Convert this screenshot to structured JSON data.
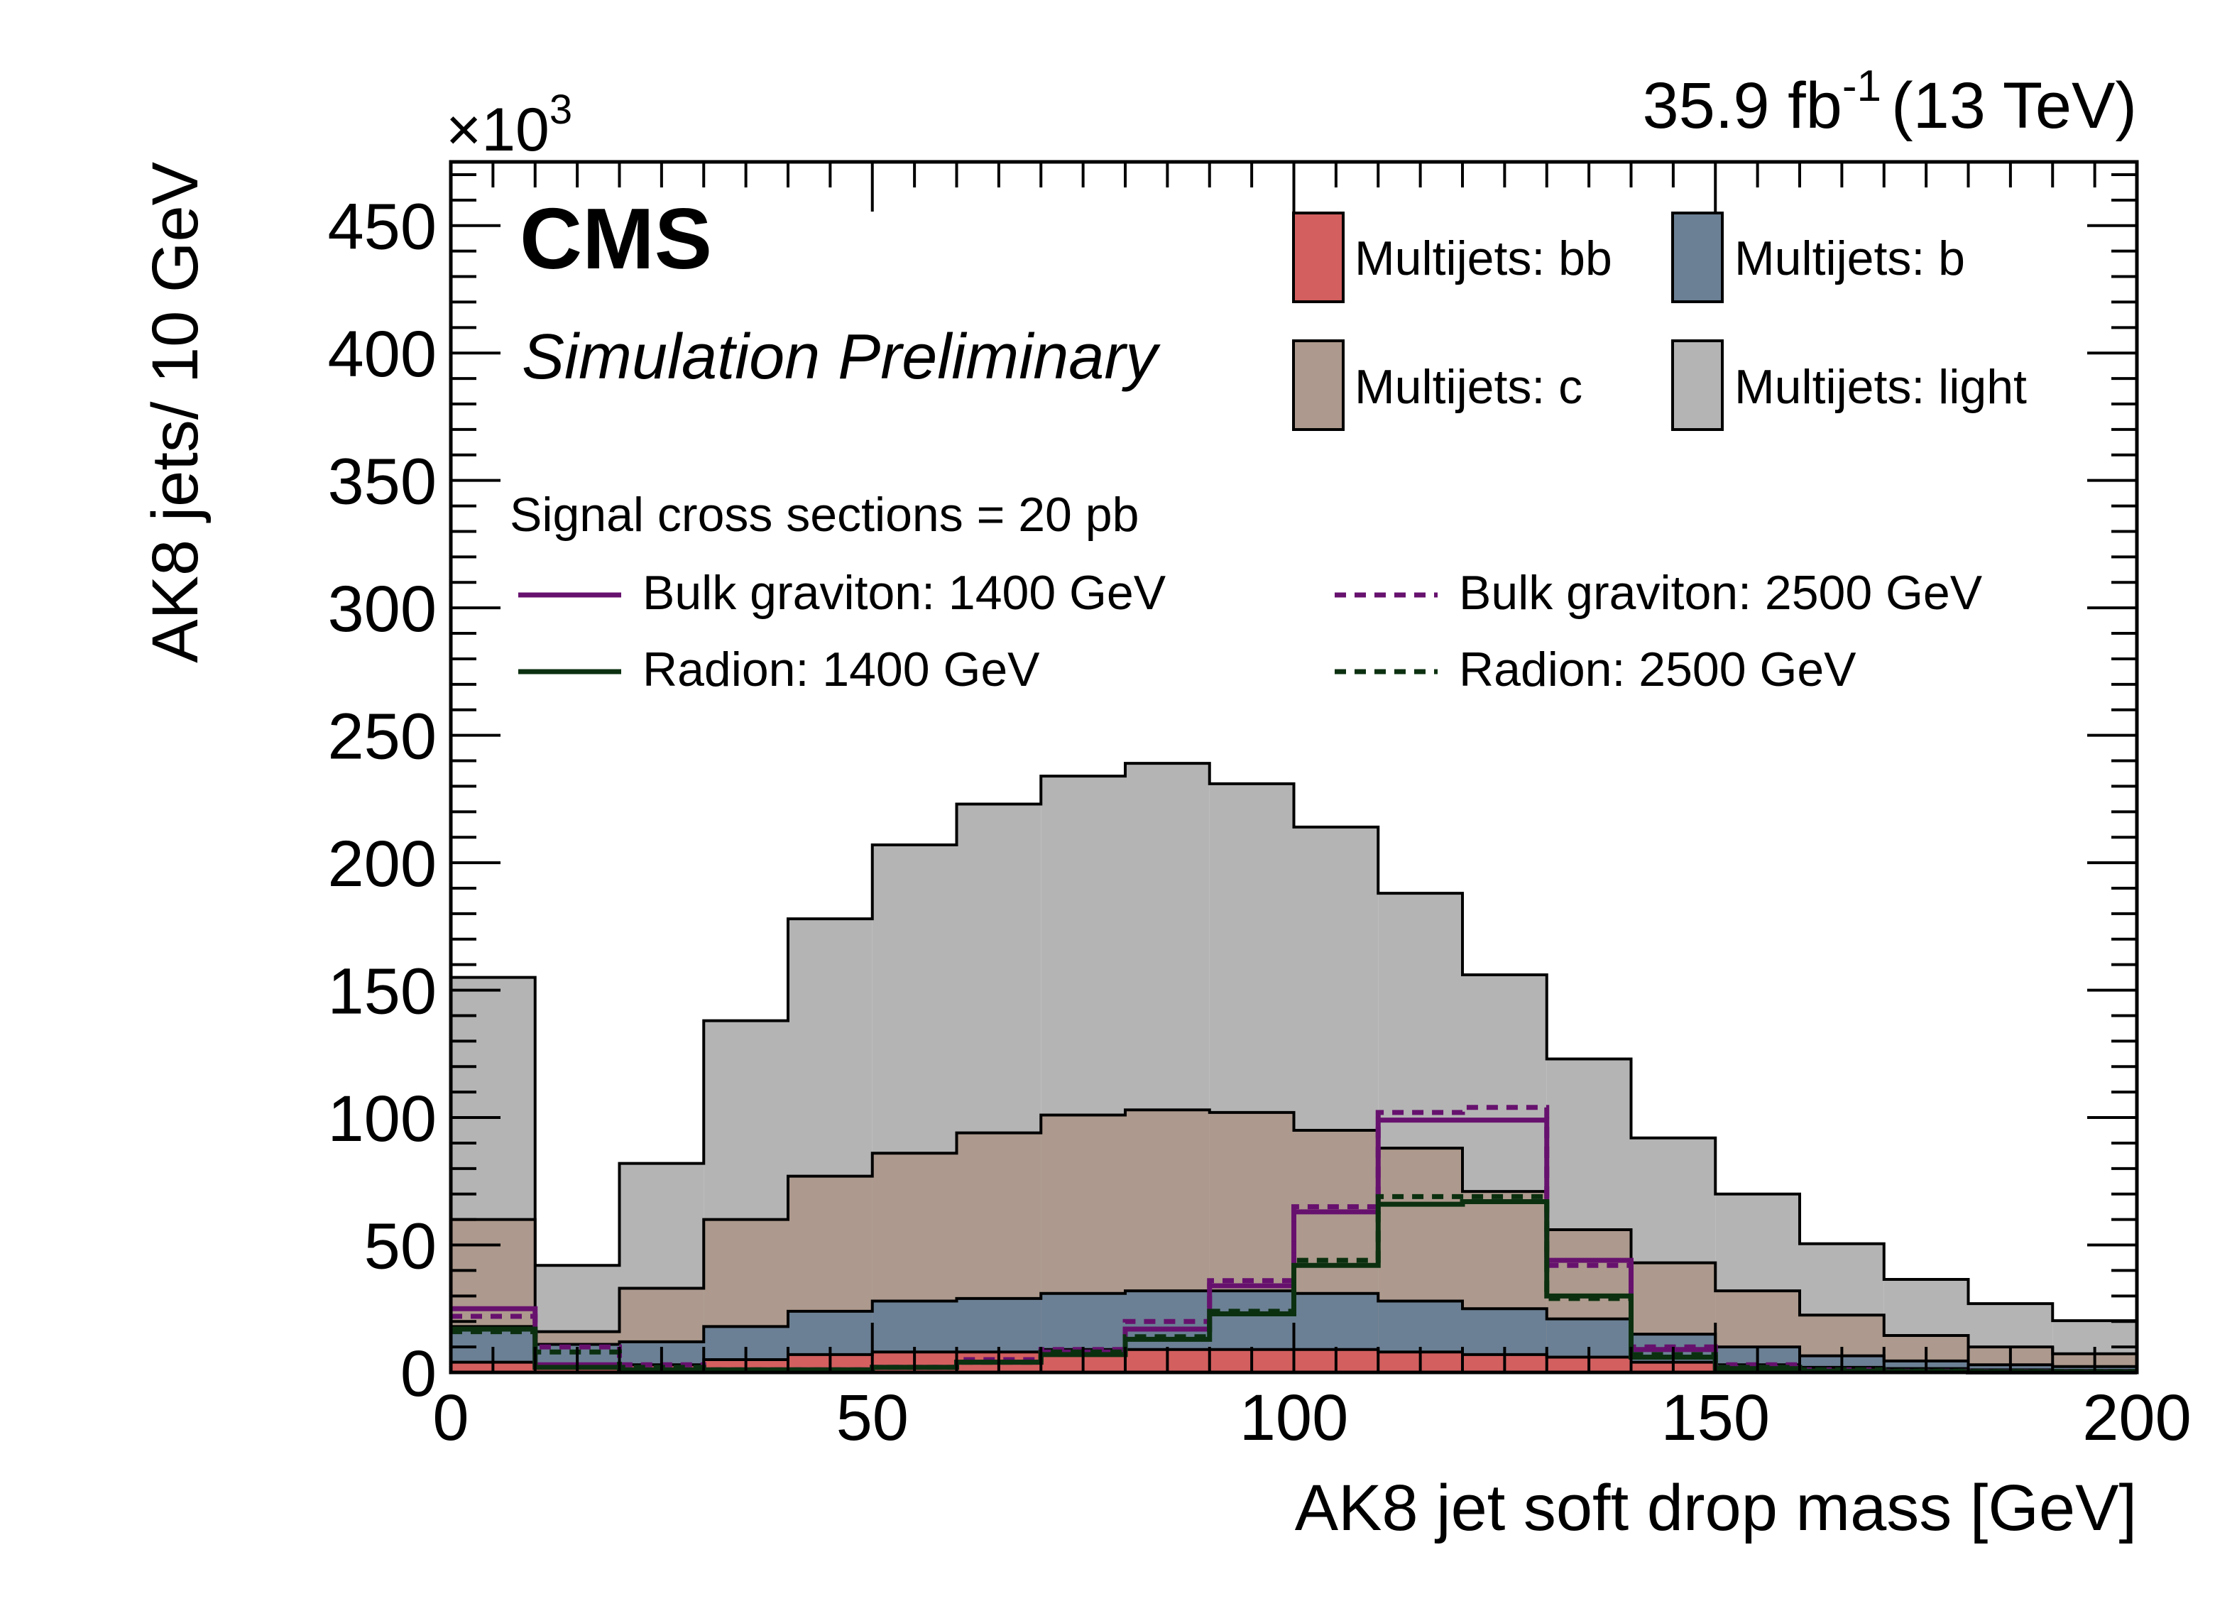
{
  "chart_data": {
    "type": "stacked-histogram",
    "xlabel": "AK8 jet soft drop mass [GeV]",
    "ylabel": "AK8 jets/ 10 GeV",
    "y_multiplier": "×10",
    "y_multiplier_exp": "3",
    "lumi_text": "35.9 fb",
    "lumi_exp": "-1",
    "energy_text": "(13 TeV)",
    "experiment": "CMS",
    "subtitle": "Simulation Preliminary",
    "xlim": [
      0,
      200
    ],
    "ylim": [
      0,
      475
    ],
    "x_ticks": [
      0,
      50,
      100,
      150,
      200
    ],
    "y_ticks": [
      0,
      50,
      100,
      150,
      200,
      250,
      300,
      350,
      400,
      450
    ],
    "bin_edges": [
      0,
      10,
      20,
      30,
      40,
      50,
      60,
      70,
      80,
      90,
      100,
      110,
      120,
      130,
      140,
      150,
      160,
      170,
      180,
      190,
      200
    ],
    "backgrounds": [
      {
        "name": "Multijets: bb",
        "color": "#d35f5f",
        "values": [
          4,
          2,
          3,
          5,
          7,
          8,
          8,
          9,
          9,
          9,
          9,
          8,
          7,
          6,
          4,
          3,
          2,
          1.5,
          1,
          0.8
        ]
      },
      {
        "name": "Multijets: b",
        "color": "#6b8094",
        "values": [
          14,
          9,
          9,
          13,
          17,
          20,
          21,
          22,
          23,
          23,
          22,
          20,
          18,
          15,
          11,
          7,
          4.5,
          3,
          2,
          1.5
        ]
      },
      {
        "name": "Multijets: c",
        "color": "#ad998d",
        "values": [
          42,
          5,
          21,
          42,
          53,
          58,
          65,
          70,
          71,
          70,
          64,
          60,
          46,
          35,
          28,
          22,
          16,
          10,
          7,
          5
        ]
      },
      {
        "name": "Multijets: light",
        "color": "#b4b4b4",
        "values": [
          95,
          26,
          49,
          78,
          101,
          121,
          129,
          133,
          136,
          129,
          119,
          100,
          85,
          67,
          49,
          38,
          28,
          22,
          17,
          13
        ]
      }
    ],
    "signal_header": "Signal cross sections = 20 pb",
    "signals": [
      {
        "name": "Bulk graviton: 1400 GeV",
        "color": "#67116e",
        "style": "solid",
        "values": [
          25,
          3,
          1,
          1,
          1,
          2,
          4,
          8,
          17,
          34,
          63,
          99,
          99,
          44,
          9,
          2,
          0.5,
          0.3,
          0.2,
          0.2
        ]
      },
      {
        "name": "Bulk graviton: 2500 GeV",
        "color": "#67116e",
        "style": "dashed",
        "values": [
          22,
          10,
          3,
          1,
          1,
          2,
          5,
          9,
          20,
          36,
          65,
          102,
          104,
          42,
          10,
          3,
          1,
          0.5,
          0.3,
          0.3
        ]
      },
      {
        "name": "Radion: 1400 GeV",
        "color": "#0b3010",
        "style": "solid",
        "values": [
          17,
          2,
          1,
          1,
          1,
          2,
          4,
          7,
          13,
          23,
          42,
          66,
          67,
          30,
          6,
          1.5,
          0.5,
          0.3,
          0.2,
          0.2
        ]
      },
      {
        "name": "Radion: 2500 GeV",
        "color": "#0b3010",
        "style": "dashed",
        "values": [
          16,
          8,
          2,
          1,
          1,
          2,
          4,
          8,
          14,
          24,
          44,
          69,
          69,
          29,
          7,
          2,
          1,
          0.5,
          0.3,
          0.3
        ]
      }
    ]
  }
}
